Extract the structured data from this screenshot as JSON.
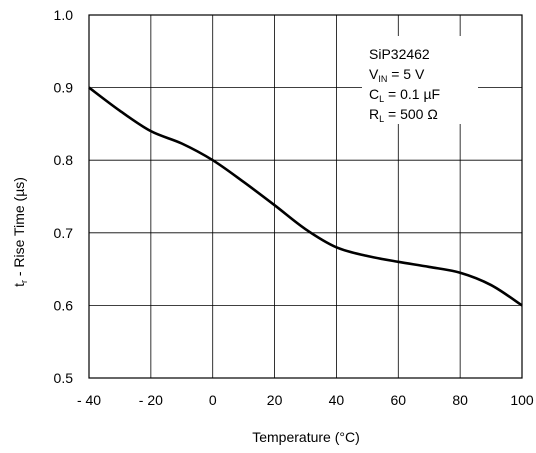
{
  "chart_data": {
    "type": "line",
    "title": "",
    "xlabel": "Temperature (°C)",
    "ylabel": {
      "main": "t",
      "sub": "r",
      "rest": " - Rise Time (µs)"
    },
    "xlim": [
      -40,
      100
    ],
    "ylim": [
      0.5,
      1.0
    ],
    "grid": true,
    "x_ticks": [
      -40,
      -20,
      0,
      20,
      40,
      60,
      80,
      100
    ],
    "x_tick_labels": [
      "- 40",
      "- 20",
      "0",
      "20",
      "40",
      "60",
      "80",
      "100"
    ],
    "y_ticks": [
      0.5,
      0.6,
      0.7,
      0.8,
      0.9,
      1.0
    ],
    "y_tick_labels": [
      "0.5",
      "0.6",
      "0.7",
      "0.8",
      "0.9",
      "1.0"
    ],
    "annotation": {
      "part": "SiP32462",
      "lines": [
        {
          "main": "V",
          "sub": "IN",
          "rest": " = 5 V"
        },
        {
          "main": "C",
          "sub": "L",
          "rest": " = 0.1 µF"
        },
        {
          "main": "R",
          "sub": "L",
          "rest": " = 500 Ω"
        }
      ]
    },
    "series": [
      {
        "color": "#000000",
        "points": [
          {
            "x": -40,
            "y": 0.9
          },
          {
            "x": -30,
            "y": 0.868
          },
          {
            "x": -20,
            "y": 0.84
          },
          {
            "x": -10,
            "y": 0.823
          },
          {
            "x": 0,
            "y": 0.8
          },
          {
            "x": 10,
            "y": 0.77
          },
          {
            "x": 20,
            "y": 0.738
          },
          {
            "x": 30,
            "y": 0.705
          },
          {
            "x": 40,
            "y": 0.68
          },
          {
            "x": 50,
            "y": 0.668
          },
          {
            "x": 60,
            "y": 0.66
          },
          {
            "x": 70,
            "y": 0.653
          },
          {
            "x": 80,
            "y": 0.645
          },
          {
            "x": 90,
            "y": 0.628
          },
          {
            "x": 100,
            "y": 0.6
          }
        ]
      }
    ]
  }
}
